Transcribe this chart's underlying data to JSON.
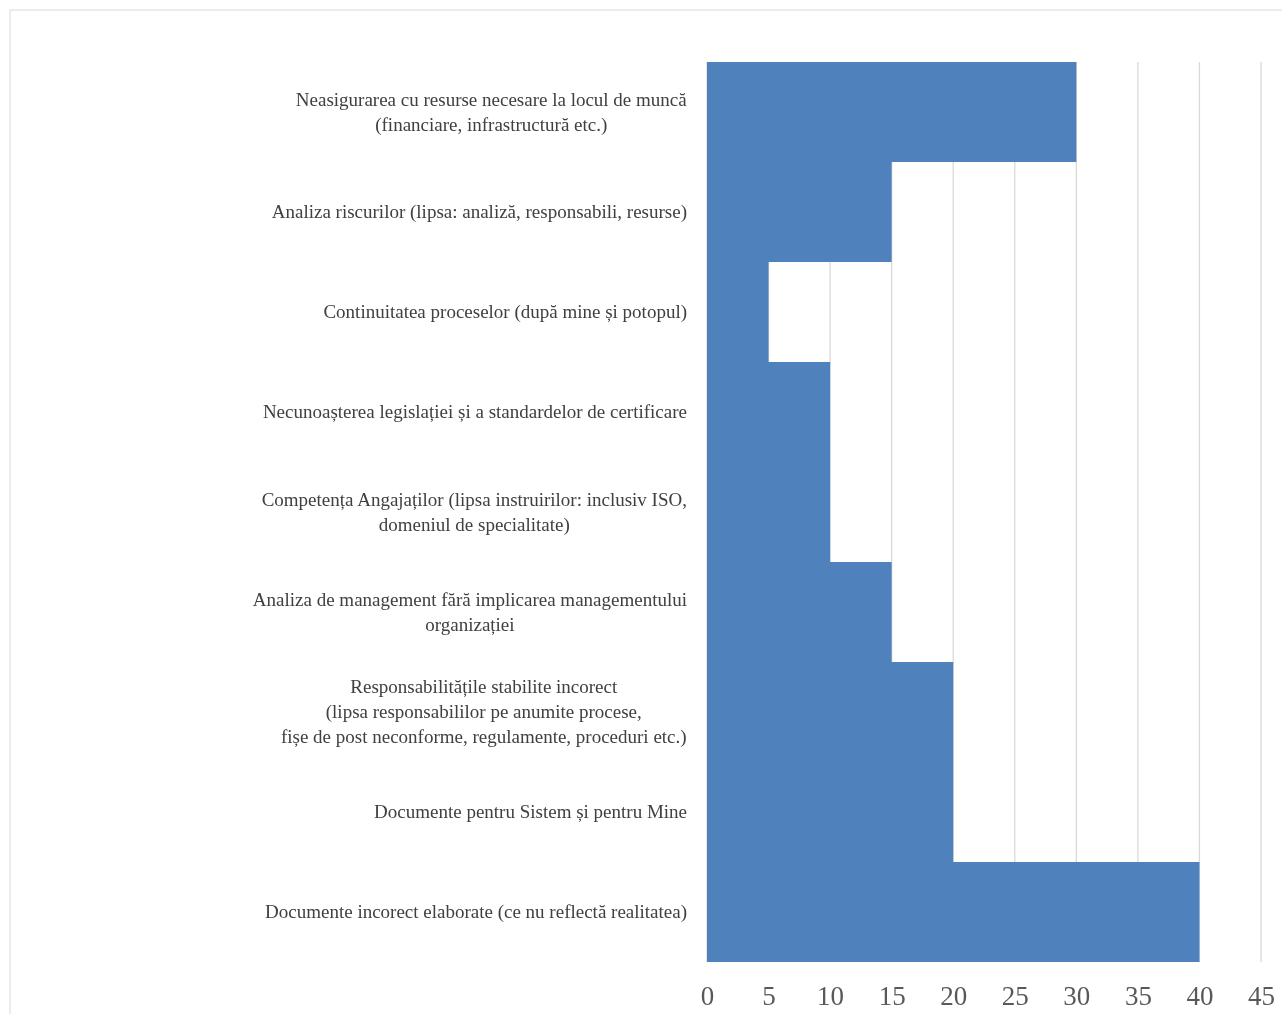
{
  "chart_data": {
    "type": "bar",
    "orientation": "horizontal",
    "categories": [
      "Neasigurarea cu resurse necesare la locul de muncă\n(financiare, infrastructură etc.)",
      "Analiza riscurilor (lipsa: analiză, responsabili, resurse)",
      "Continuitatea proceselor (după mine și potopul)",
      "Necunoașterea legislației și a standardelor de certificare",
      "Competența Angajaților (lipsa instruirilor: inclusiv ISO,\ndomeniul de specialitate)",
      "Analiza de management fără implicarea managementului\norganizației",
      "Responsabilitățile stabilite incorect\n(lipsa responsabililor pe anumite procese,\nfișe de post neconforme, regulamente, proceduri etc.)",
      "Documente pentru Sistem și pentru Mine",
      "Documente incorect elaborate (ce nu reflectă realitatea)"
    ],
    "values": [
      30,
      15,
      5,
      10,
      10,
      15,
      20,
      20,
      40
    ],
    "color": "#4f81bd",
    "xlim": [
      0,
      45
    ],
    "xticks": [
      0,
      5,
      10,
      15,
      20,
      25,
      30,
      35,
      40,
      45
    ],
    "grid": "x"
  }
}
